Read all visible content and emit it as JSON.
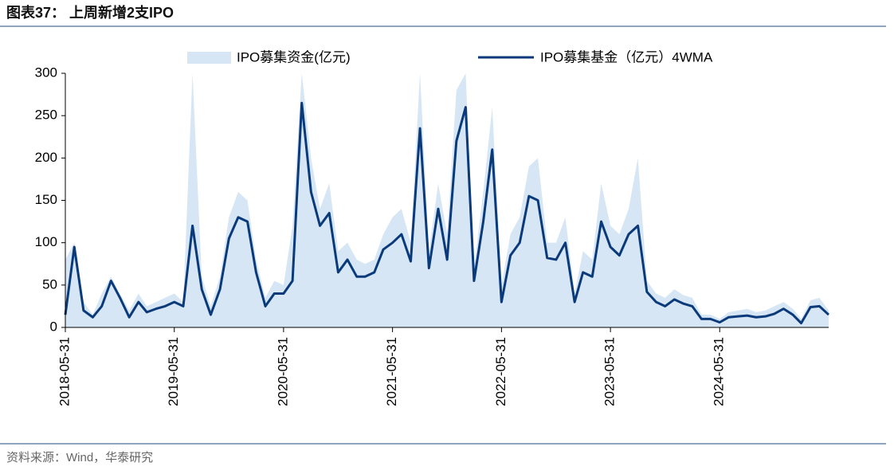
{
  "header": {
    "title": "图表37：  上周新增2支IPO"
  },
  "footer": {
    "source": "资料来源：Wind，华泰研究"
  },
  "chart_data": {
    "type": "line",
    "legend": "upper center",
    "x": [
      "2018-05-31",
      "2018-06-30",
      "2018-07-31",
      "2018-08-31",
      "2018-09-30",
      "2018-10-31",
      "2018-11-30",
      "2018-12-31",
      "2019-01-31",
      "2019-02-28",
      "2019-03-31",
      "2019-04-30",
      "2019-05-31",
      "2019-06-30",
      "2019-07-31",
      "2019-08-31",
      "2019-09-30",
      "2019-10-31",
      "2019-11-30",
      "2019-12-31",
      "2020-01-31",
      "2020-02-29",
      "2020-03-31",
      "2020-04-30",
      "2020-05-31",
      "2020-06-30",
      "2020-07-31",
      "2020-08-31",
      "2020-09-30",
      "2020-10-31",
      "2020-11-30",
      "2020-12-31",
      "2021-01-31",
      "2021-02-28",
      "2021-03-31",
      "2021-04-30",
      "2021-05-31",
      "2021-06-30",
      "2021-07-31",
      "2021-08-31",
      "2021-09-30",
      "2021-10-31",
      "2021-11-30",
      "2021-12-31",
      "2022-01-31",
      "2022-02-28",
      "2022-03-31",
      "2022-04-30",
      "2022-05-31",
      "2022-06-30",
      "2022-07-31",
      "2022-08-31",
      "2022-09-30",
      "2022-10-31",
      "2022-11-30",
      "2022-12-31",
      "2023-01-31",
      "2023-02-28",
      "2023-03-31",
      "2023-04-30",
      "2023-05-31",
      "2023-06-30",
      "2023-07-31",
      "2023-08-31",
      "2023-09-30",
      "2023-10-31",
      "2023-11-30",
      "2023-12-31",
      "2024-01-31",
      "2024-02-29",
      "2024-03-31",
      "2024-04-30",
      "2024-05-31",
      "2024-06-30",
      "2024-07-31",
      "2024-08-31",
      "2024-09-30",
      "2024-10-31",
      "2024-11-30",
      "2024-12-31",
      "2025-01-31",
      "2025-02-28",
      "2025-03-31",
      "2025-04-30",
      "2025-05-31"
    ],
    "series": [
      {
        "name": "IPO募集资金(亿元)",
        "kind": "area",
        "color": "#d6e6f5",
        "values": [
          80,
          100,
          30,
          15,
          40,
          60,
          40,
          20,
          40,
          25,
          30,
          35,
          40,
          30,
          300,
          60,
          25,
          60,
          130,
          160,
          150,
          80,
          35,
          55,
          50,
          120,
          300,
          200,
          140,
          170,
          90,
          100,
          80,
          75,
          80,
          110,
          130,
          140,
          100,
          300,
          90,
          170,
          110,
          280,
          300,
          70,
          160,
          260,
          50,
          110,
          130,
          190,
          200,
          100,
          100,
          130,
          40,
          90,
          80,
          170,
          120,
          110,
          140,
          200,
          55,
          40,
          35,
          45,
          38,
          35,
          15,
          15,
          10,
          18,
          20,
          22,
          18,
          20,
          25,
          30,
          22,
          10,
          32,
          35,
          20
        ]
      },
      {
        "name": "IPO募集基金（亿元）4WMA",
        "kind": "line",
        "color": "#0b3a7a",
        "values": [
          15,
          95,
          20,
          12,
          25,
          55,
          35,
          12,
          30,
          18,
          22,
          25,
          30,
          25,
          120,
          45,
          15,
          45,
          105,
          130,
          125,
          65,
          25,
          40,
          40,
          55,
          265,
          160,
          120,
          135,
          65,
          80,
          60,
          60,
          65,
          92,
          100,
          110,
          78,
          235,
          70,
          140,
          80,
          220,
          260,
          55,
          125,
          210,
          30,
          85,
          100,
          155,
          150,
          82,
          80,
          100,
          30,
          65,
          60,
          125,
          95,
          85,
          110,
          120,
          42,
          30,
          25,
          33,
          28,
          25,
          10,
          10,
          6,
          12,
          13,
          14,
          12,
          13,
          16,
          22,
          15,
          5,
          24,
          25,
          15
        ]
      }
    ],
    "xlim": [
      "2018-05-31",
      "2025-05-31"
    ],
    "xticks": [
      "2018-05-31",
      "2019-05-31",
      "2020-05-31",
      "2021-05-31",
      "2022-05-31",
      "2023-05-31",
      "2024-05-31"
    ],
    "ylim": [
      0,
      300
    ],
    "yticks": [
      0,
      50,
      100,
      150,
      200,
      250,
      300
    ],
    "grid": false
  }
}
